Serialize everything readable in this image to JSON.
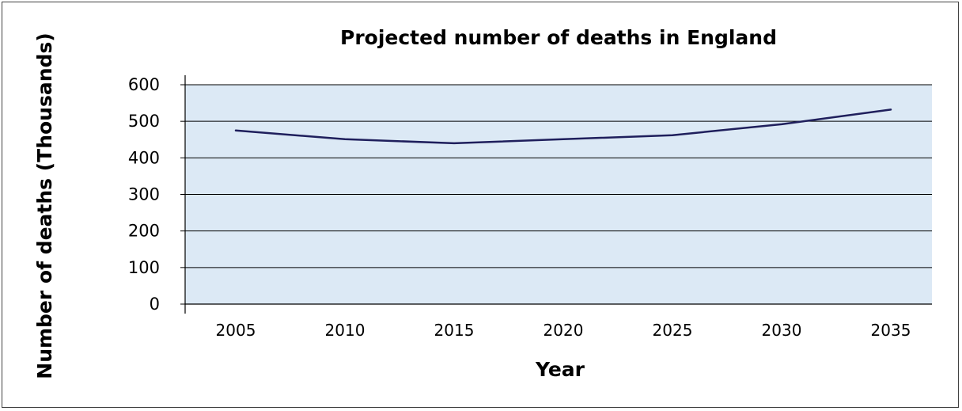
{
  "chart_data": {
    "type": "line",
    "title": "Projected number of deaths in England",
    "xlabel": "Year",
    "ylabel": "Number of deaths (Thousands)",
    "ylim": [
      0,
      600
    ],
    "y_ticks": [
      "0",
      "100",
      "200",
      "300",
      "400",
      "500",
      "600"
    ],
    "categories": [
      "2005",
      "2010",
      "2015",
      "2020",
      "2025",
      "2030",
      "2035"
    ],
    "values": [
      475,
      451,
      440,
      451,
      462,
      492,
      532
    ],
    "grid": true,
    "legend": "none",
    "colors": {
      "line": "#1f1f5c",
      "plot_background": "#dce9f5",
      "gridline": "#000000"
    }
  }
}
